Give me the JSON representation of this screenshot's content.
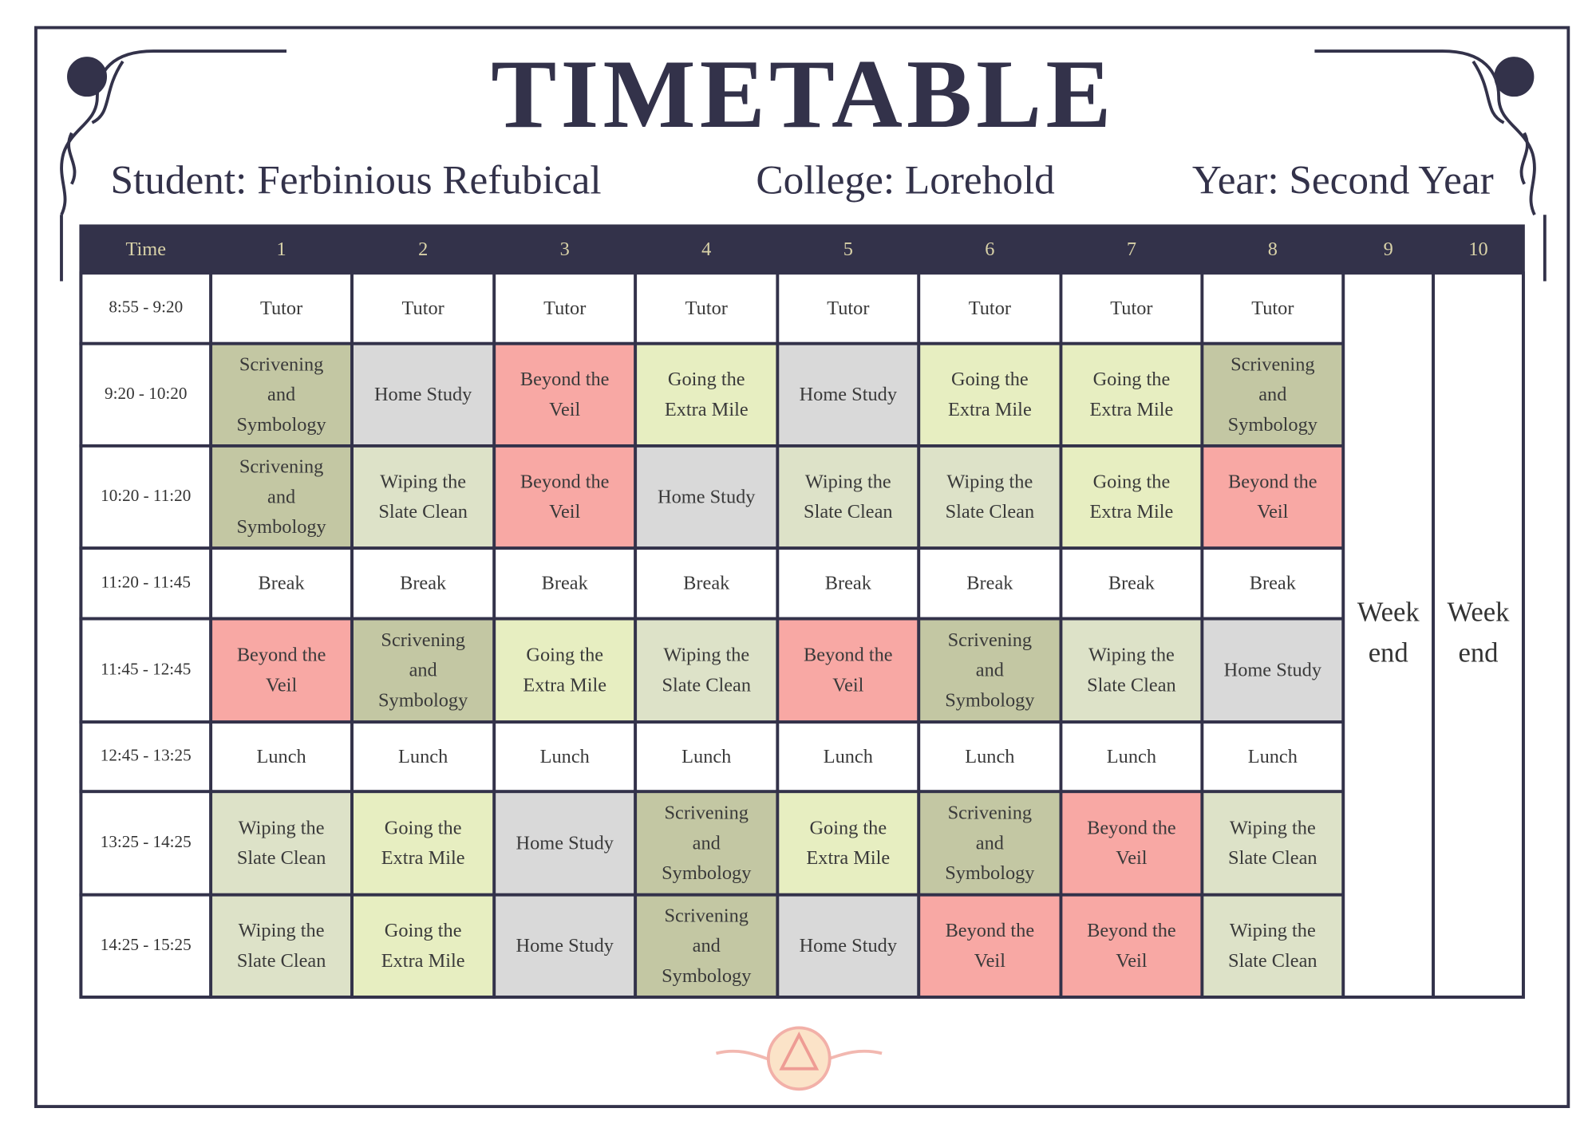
{
  "header": {
    "title": "TIMETABLE",
    "student": "Student: Ferbinious Refubical",
    "college": "College: Lorehold",
    "year": "Year: Second Year"
  },
  "table": {
    "headers": [
      "Time",
      "1",
      "2",
      "3",
      "4",
      "5",
      "6",
      "7",
      "8",
      "9",
      "10"
    ],
    "rows": [
      {
        "time": "8:55 - 9:20",
        "cells": [
          {
            "text": "Tutor",
            "color": "#ffffff"
          },
          {
            "text": "Tutor",
            "color": "#ffffff"
          },
          {
            "text": "Tutor",
            "color": "#ffffff"
          },
          {
            "text": "Tutor",
            "color": "#ffffff"
          },
          {
            "text": "Tutor",
            "color": "#ffffff"
          },
          {
            "text": "Tutor",
            "color": "#ffffff"
          },
          {
            "text": "Tutor",
            "color": "#ffffff"
          },
          {
            "text": "Tutor",
            "color": "#ffffff"
          }
        ]
      },
      {
        "time": "9:20 - 10:20",
        "cells": [
          {
            "text": "Scrivening and Symbology",
            "color": "#c3c7a3"
          },
          {
            "text": "Home Study",
            "color": "#d9d9d9"
          },
          {
            "text": "Beyond the Veil",
            "color": "#f8a8a4"
          },
          {
            "text": "Going the Extra Mile",
            "color": "#e7eec1"
          },
          {
            "text": "Home Study",
            "color": "#d9d9d9"
          },
          {
            "text": "Going the Extra Mile",
            "color": "#e7eec1"
          },
          {
            "text": "Going the Extra Mile",
            "color": "#e7eec1"
          },
          {
            "text": "Scrivening and Symbology",
            "color": "#c3c7a3"
          }
        ]
      },
      {
        "time": "10:20 - 11:20",
        "cells": [
          {
            "text": "Scrivening and Symbology",
            "color": "#c3c7a3"
          },
          {
            "text": "Wiping the Slate Clean",
            "color": "#dde2c8"
          },
          {
            "text": "Beyond the Veil",
            "color": "#f8a8a4"
          },
          {
            "text": "Home Study",
            "color": "#d9d9d9"
          },
          {
            "text": "Wiping the Slate Clean",
            "color": "#dde2c8"
          },
          {
            "text": "Wiping the Slate Clean",
            "color": "#dde2c8"
          },
          {
            "text": "Going the Extra Mile",
            "color": "#e7eec1"
          },
          {
            "text": "Beyond the Veil",
            "color": "#f8a8a4"
          }
        ]
      },
      {
        "time": "11:20 - 11:45",
        "cells": [
          {
            "text": "Break",
            "color": "#ffffff"
          },
          {
            "text": "Break",
            "color": "#ffffff"
          },
          {
            "text": "Break",
            "color": "#ffffff"
          },
          {
            "text": "Break",
            "color": "#ffffff"
          },
          {
            "text": "Break",
            "color": "#ffffff"
          },
          {
            "text": "Break",
            "color": "#ffffff"
          },
          {
            "text": "Break",
            "color": "#ffffff"
          },
          {
            "text": "Break",
            "color": "#ffffff"
          }
        ]
      },
      {
        "time": "11:45 - 12:45",
        "cells": [
          {
            "text": "Beyond the Veil",
            "color": "#f8a8a4"
          },
          {
            "text": "Scrivening and Symbology",
            "color": "#c3c7a3"
          },
          {
            "text": "Going the Extra Mile",
            "color": "#e7eec1"
          },
          {
            "text": "Wiping the Slate Clean",
            "color": "#dde2c8"
          },
          {
            "text": "Beyond the Veil",
            "color": "#f8a8a4"
          },
          {
            "text": "Scrivening and Symbology",
            "color": "#c3c7a3"
          },
          {
            "text": "Wiping the Slate Clean",
            "color": "#dde2c8"
          },
          {
            "text": "Home Study",
            "color": "#d9d9d9"
          }
        ]
      },
      {
        "time": "12:45 - 13:25",
        "cells": [
          {
            "text": "Lunch",
            "color": "#ffffff"
          },
          {
            "text": "Lunch",
            "color": "#ffffff"
          },
          {
            "text": "Lunch",
            "color": "#ffffff"
          },
          {
            "text": "Lunch",
            "color": "#ffffff"
          },
          {
            "text": "Lunch",
            "color": "#ffffff"
          },
          {
            "text": "Lunch",
            "color": "#ffffff"
          },
          {
            "text": "Lunch",
            "color": "#ffffff"
          },
          {
            "text": "Lunch",
            "color": "#ffffff"
          }
        ]
      },
      {
        "time": "13:25 - 14:25",
        "cells": [
          {
            "text": "Wiping the Slate Clean",
            "color": "#dde2c8"
          },
          {
            "text": "Going the Extra Mile",
            "color": "#e7eec1"
          },
          {
            "text": "Home Study",
            "color": "#d9d9d9"
          },
          {
            "text": "Scrivening and Symbology",
            "color": "#c3c7a3"
          },
          {
            "text": "Going the Extra Mile",
            "color": "#e7eec1"
          },
          {
            "text": "Scrivening and Symbology",
            "color": "#c3c7a3"
          },
          {
            "text": "Beyond the Veil",
            "color": "#f8a8a4"
          },
          {
            "text": "Wiping the Slate Clean",
            "color": "#dde2c8"
          }
        ]
      },
      {
        "time": "14:25 - 15:25",
        "cells": [
          {
            "text": "Wiping the Slate Clean",
            "color": "#dde2c8"
          },
          {
            "text": "Going the Extra Mile",
            "color": "#e7eec1"
          },
          {
            "text": "Home Study",
            "color": "#d9d9d9"
          },
          {
            "text": "Scrivening and Symbology",
            "color": "#c3c7a3"
          },
          {
            "text": "Home Study",
            "color": "#d9d9d9"
          },
          {
            "text": "Beyond the Veil",
            "color": "#f8a8a4"
          },
          {
            "text": "Beyond the Veil",
            "color": "#f8a8a4"
          },
          {
            "text": "Wiping the Slate Clean",
            "color": "#dde2c8"
          }
        ]
      }
    ],
    "weekend": [
      "Week end",
      "Week end"
    ]
  }
}
